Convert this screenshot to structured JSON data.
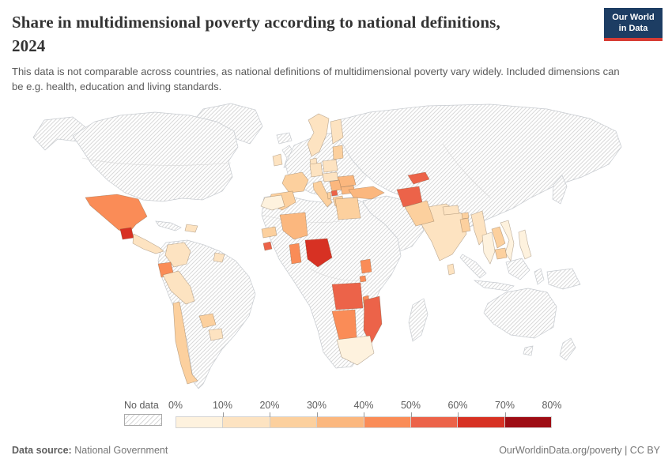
{
  "header": {
    "title_line1": "Share in multidimensional poverty according to national definitions,",
    "title_line2": "2024",
    "subtitle": "This data is not comparable across countries, as national definitions of multidimensional poverty vary widely. Included dimensions can be e.g. health, education and living standards."
  },
  "logo": {
    "line1": "Our World",
    "line2": "in Data",
    "bg_color": "#1d3d63",
    "accent_color": "#d73c34"
  },
  "legend": {
    "no_data_label": "No data",
    "tick_labels": [
      "0%",
      "10%",
      "20%",
      "30%",
      "40%",
      "50%",
      "60%",
      "70%",
      "80%"
    ],
    "bin_colors": [
      "#FEF2DE",
      "#FDE3C1",
      "#FCD09E",
      "#FBB77E",
      "#FA8C57",
      "#EC6349",
      "#D73123",
      "#9E0D14"
    ]
  },
  "footer": {
    "datasource_label": "Data source:",
    "datasource_value": "National Government",
    "right_text": "OurWorldinData.org/poverty | CC BY"
  },
  "chart_data": {
    "type": "choropleth_map",
    "title": "Share in multidimensional poverty according to national definitions, 2024",
    "unit": "%",
    "value_range": [
      0,
      80
    ],
    "bins": [
      "0-10%",
      "10-20%",
      "20-30%",
      "30-40%",
      "40-50%",
      "50-60%",
      "60-70%",
      "70-80%"
    ],
    "no_data_style": "diagonal-hatch",
    "regions": [
      {
        "id": "mexico",
        "name": "Mexico",
        "bin": "40-50%",
        "bin_index": 4
      },
      {
        "id": "guatemala",
        "name": "Guatemala",
        "bin": "60-70%",
        "bin_index": 6
      },
      {
        "id": "central-america",
        "name": "El Salvador, Honduras, Nicaragua, Costa Rica, Panama",
        "bin": "10-20%",
        "bin_index": 1
      },
      {
        "id": "hispaniola",
        "name": "Dominican Republic",
        "bin": "10-20%",
        "bin_index": 1
      },
      {
        "id": "colombia",
        "name": "Colombia",
        "bin": "10-20%",
        "bin_index": 1
      },
      {
        "id": "suriname",
        "name": "Suriname",
        "bin": "10-20%",
        "bin_index": 1
      },
      {
        "id": "ecuador",
        "name": "Ecuador",
        "bin": "40-50%",
        "bin_index": 4
      },
      {
        "id": "peru",
        "name": "Peru",
        "bin": "10-20%",
        "bin_index": 1
      },
      {
        "id": "chile",
        "name": "Chile",
        "bin": "20-30%",
        "bin_index": 2
      },
      {
        "id": "paraguay",
        "name": "Paraguay",
        "bin": "20-30%",
        "bin_index": 2
      },
      {
        "id": "uruguay",
        "name": "Uruguay",
        "bin": "10-20%",
        "bin_index": 1
      },
      {
        "id": "morocco",
        "name": "Morocco",
        "bin": "0-10%",
        "bin_index": 0
      },
      {
        "id": "senegal",
        "name": "Senegal",
        "bin": "20-30%",
        "bin_index": 2
      },
      {
        "id": "sierra-leone",
        "name": "Sierra Leone",
        "bin": "50-60%",
        "bin_index": 5
      },
      {
        "id": "mali",
        "name": "Mali",
        "bin": "30-40%",
        "bin_index": 3
      },
      {
        "id": "ghana",
        "name": "Ghana",
        "bin": "40-50%",
        "bin_index": 4
      },
      {
        "id": "nigeria",
        "name": "Nigeria",
        "bin": "60-70%",
        "bin_index": 6
      },
      {
        "id": "egypt",
        "name": "Egypt",
        "bin": "20-30%",
        "bin_index": 2
      },
      {
        "id": "uganda",
        "name": "Uganda",
        "bin": "40-50%",
        "bin_index": 4
      },
      {
        "id": "rwanda",
        "name": "Rwanda",
        "bin": "40-50%",
        "bin_index": 4
      },
      {
        "id": "angola",
        "name": "Angola",
        "bin": "50-60%",
        "bin_index": 5
      },
      {
        "id": "namibia",
        "name": "Namibia",
        "bin": "40-50%",
        "bin_index": 4
      },
      {
        "id": "malawi",
        "name": "Malawi",
        "bin": "40-50%",
        "bin_index": 4
      },
      {
        "id": "mozambique",
        "name": "Mozambique",
        "bin": "50-60%",
        "bin_index": 5
      },
      {
        "id": "south-africa",
        "name": "South Africa",
        "bin": "0-10%",
        "bin_index": 0
      },
      {
        "id": "ireland",
        "name": "Ireland",
        "bin": "10-20%",
        "bin_index": 1
      },
      {
        "id": "scandinavia",
        "name": "Norway & Sweden",
        "bin": "10-20%",
        "bin_index": 1
      },
      {
        "id": "finland",
        "name": "Finland",
        "bin": "10-20%",
        "bin_index": 1
      },
      {
        "id": "denmark",
        "name": "Denmark",
        "bin": "10-20%",
        "bin_index": 1
      },
      {
        "id": "baltics",
        "name": "Baltic states",
        "bin": "20-30%",
        "bin_index": 2
      },
      {
        "id": "poland",
        "name": "Poland",
        "bin": "10-20%",
        "bin_index": 1
      },
      {
        "id": "germany",
        "name": "Germany",
        "bin": "10-20%",
        "bin_index": 1
      },
      {
        "id": "france",
        "name": "France",
        "bin": "20-30%",
        "bin_index": 2
      },
      {
        "id": "iberia",
        "name": "Spain & Portugal",
        "bin": "20-30%",
        "bin_index": 2
      },
      {
        "id": "italy",
        "name": "Italy",
        "bin": "20-30%",
        "bin_index": 2
      },
      {
        "id": "central-europe",
        "name": "Czechia, Slovakia, Hungary, Austria",
        "bin": "10-20%",
        "bin_index": 1
      },
      {
        "id": "romania",
        "name": "Romania",
        "bin": "30-40%",
        "bin_index": 3
      },
      {
        "id": "serbia",
        "name": "Serbia",
        "bin": "30-40%",
        "bin_index": 3
      },
      {
        "id": "kosovo",
        "name": "Kosovo / North Macedonia",
        "bin": "50-60%",
        "bin_index": 5
      },
      {
        "id": "albania",
        "name": "Albania",
        "bin": "20-30%",
        "bin_index": 2
      },
      {
        "id": "greece",
        "name": "Greece",
        "bin": "20-30%",
        "bin_index": 2
      },
      {
        "id": "bulgaria",
        "name": "Bulgaria",
        "bin": "30-40%",
        "bin_index": 3
      },
      {
        "id": "turkey",
        "name": "Turkey",
        "bin": "30-40%",
        "bin_index": 3
      },
      {
        "id": "kyrgyzstan",
        "name": "Kyrgyzstan",
        "bin": "50-60%",
        "bin_index": 5
      },
      {
        "id": "afghanistan",
        "name": "Afghanistan",
        "bin": "50-60%",
        "bin_index": 5
      },
      {
        "id": "pakistan",
        "name": "Pakistan",
        "bin": "20-30%",
        "bin_index": 2
      },
      {
        "id": "india",
        "name": "India",
        "bin": "10-20%",
        "bin_index": 1
      },
      {
        "id": "nepal",
        "name": "Nepal",
        "bin": "10-20%",
        "bin_index": 1
      },
      {
        "id": "bhutan",
        "name": "Bhutan",
        "bin": "20-30%",
        "bin_index": 2
      },
      {
        "id": "bangladesh",
        "name": "Bangladesh",
        "bin": "20-30%",
        "bin_index": 2
      },
      {
        "id": "sri-lanka",
        "name": "Sri Lanka",
        "bin": "10-20%",
        "bin_index": 1
      },
      {
        "id": "myanmar",
        "name": "Myanmar",
        "bin": "10-20%",
        "bin_index": 1
      },
      {
        "id": "thailand",
        "name": "Thailand",
        "bin": "0-10%",
        "bin_index": 0
      },
      {
        "id": "laos",
        "name": "Laos",
        "bin": "20-30%",
        "bin_index": 2
      },
      {
        "id": "cambodia",
        "name": "Cambodia",
        "bin": "20-30%",
        "bin_index": 2
      },
      {
        "id": "vietnam",
        "name": "Vietnam",
        "bin": "0-10%",
        "bin_index": 0
      },
      {
        "id": "philippines",
        "name": "Philippines",
        "bin": "0-10%",
        "bin_index": 0
      }
    ],
    "no_data_regions": [
      "United States",
      "Canada",
      "Greenland",
      "Cuba",
      "Venezuela",
      "Brazil",
      "Bolivia",
      "Argentina",
      "Iceland",
      "United Kingdom",
      "Ukraine",
      "Belarus",
      "Russia",
      "Kazakhstan",
      "China",
      "Mongolia",
      "Saudi Arabia",
      "Iran",
      "Algeria",
      "Libya",
      "Sudan",
      "Ethiopia",
      "DR Congo",
      "Tanzania",
      "Kenya",
      "Zambia",
      "Botswana",
      "Zimbabwe",
      "Madagascar",
      "Indonesia",
      "Malaysia",
      "Japan",
      "Papua New Guinea",
      "Australia",
      "New Zealand"
    ]
  }
}
